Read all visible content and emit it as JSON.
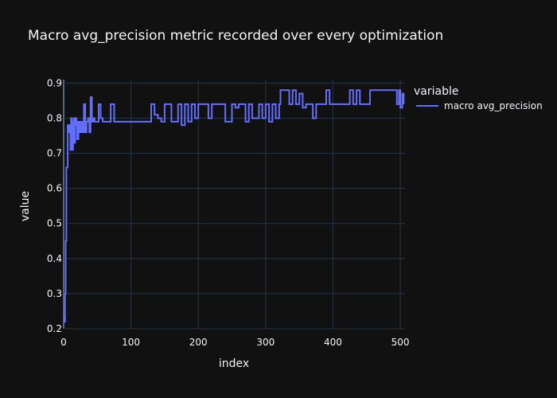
{
  "chart_data": {
    "type": "line",
    "title": "Macro avg_precision metric recorded over every optimization",
    "xlabel": "index",
    "ylabel": "value",
    "xlim": [
      0,
      507
    ],
    "ylim": [
      0.2,
      0.91
    ],
    "x_ticks": [
      0,
      100,
      200,
      300,
      400,
      500
    ],
    "y_ticks": [
      0.2,
      0.3,
      0.4,
      0.5,
      0.6,
      0.7,
      0.8,
      0.9
    ],
    "grid": true,
    "legend": {
      "title": "variable",
      "position": "top-right"
    },
    "series": [
      {
        "name": "macro avg_precision",
        "color": "#636efa",
        "x": [
          0,
          1,
          2,
          3,
          4,
          5,
          6,
          7,
          8,
          9,
          10,
          11,
          12,
          13,
          14,
          15,
          16,
          17,
          18,
          19,
          20,
          22,
          24,
          26,
          28,
          30,
          32,
          34,
          36,
          38,
          40,
          42,
          44,
          46,
          48,
          50,
          52,
          55,
          58,
          60,
          65,
          70,
          75,
          80,
          85,
          90,
          95,
          100,
          110,
          120,
          130,
          135,
          140,
          145,
          150,
          160,
          170,
          175,
          180,
          185,
          190,
          195,
          200,
          210,
          215,
          220,
          230,
          240,
          250,
          255,
          260,
          270,
          275,
          280,
          290,
          295,
          300,
          305,
          310,
          315,
          320,
          322,
          325,
          330,
          335,
          340,
          345,
          350,
          355,
          360,
          365,
          370,
          375,
          380,
          385,
          390,
          395,
          400,
          410,
          420,
          425,
          430,
          435,
          440,
          450,
          455,
          460,
          470,
          480,
          490,
          495,
          498,
          500,
          503,
          505
        ],
        "y": [
          0.23,
          0.22,
          0.3,
          0.45,
          0.66,
          0.66,
          0.78,
          0.78,
          0.76,
          0.78,
          0.71,
          0.8,
          0.78,
          0.71,
          0.79,
          0.8,
          0.73,
          0.78,
          0.8,
          0.79,
          0.74,
          0.79,
          0.76,
          0.79,
          0.76,
          0.84,
          0.76,
          0.79,
          0.8,
          0.76,
          0.86,
          0.79,
          0.8,
          0.79,
          0.79,
          0.79,
          0.84,
          0.8,
          0.79,
          0.79,
          0.79,
          0.84,
          0.79,
          0.79,
          0.79,
          0.79,
          0.79,
          0.79,
          0.79,
          0.79,
          0.84,
          0.81,
          0.8,
          0.79,
          0.84,
          0.79,
          0.84,
          0.78,
          0.84,
          0.79,
          0.84,
          0.8,
          0.84,
          0.84,
          0.8,
          0.84,
          0.84,
          0.79,
          0.84,
          0.83,
          0.84,
          0.79,
          0.84,
          0.8,
          0.84,
          0.8,
          0.84,
          0.79,
          0.84,
          0.8,
          0.84,
          0.88,
          0.88,
          0.88,
          0.84,
          0.88,
          0.84,
          0.87,
          0.83,
          0.84,
          0.84,
          0.8,
          0.84,
          0.84,
          0.84,
          0.88,
          0.84,
          0.84,
          0.84,
          0.84,
          0.88,
          0.84,
          0.88,
          0.84,
          0.84,
          0.88,
          0.88,
          0.88,
          0.88,
          0.88,
          0.84,
          0.88,
          0.83,
          0.87,
          0.84
        ]
      }
    ]
  }
}
